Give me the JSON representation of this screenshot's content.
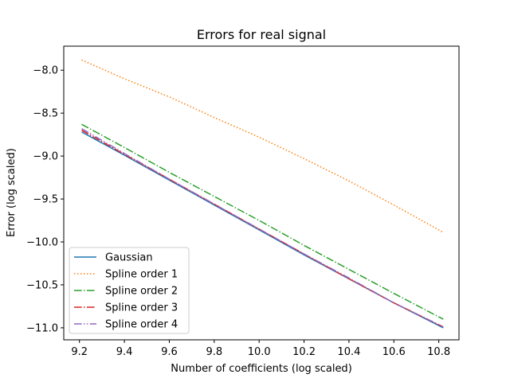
{
  "chart_data": {
    "type": "line",
    "title": "Errors for real signal",
    "xlabel": "Number of coefficients (log scaled)",
    "ylabel": "Error (log scaled)",
    "xlim": [
      9.13,
      10.89
    ],
    "ylim": [
      -11.14,
      -7.72
    ],
    "xticks": [
      9.2,
      9.4,
      9.6,
      9.8,
      10.0,
      10.2,
      10.4,
      10.6,
      10.8
    ],
    "xtick_labels": [
      "9.2",
      "9.4",
      "9.6",
      "9.8",
      "10.0",
      "10.2",
      "10.4",
      "10.6",
      "10.8"
    ],
    "yticks": [
      -8.0,
      -8.5,
      -9.0,
      -9.5,
      -10.0,
      -10.5,
      -11.0
    ],
    "ytick_labels": [
      "−8.0",
      "−8.5",
      "−9.0",
      "−9.5",
      "−10.0",
      "−10.5",
      "−11.0"
    ],
    "grid": false,
    "legend_position": "lower-left",
    "series": [
      {
        "name": "Gaussian",
        "color": "#1f77b4",
        "dash": "solid",
        "x": [
          9.21,
          9.4,
          9.6,
          9.8,
          10.0,
          10.2,
          10.4,
          10.6,
          10.82
        ],
        "y": [
          -8.72,
          -8.99,
          -9.28,
          -9.57,
          -9.86,
          -10.15,
          -10.43,
          -10.71,
          -11.0
        ]
      },
      {
        "name": "Spline order 1",
        "color": "#ff7f0e",
        "dash": "dotted",
        "x": [
          9.21,
          9.4,
          9.6,
          9.8,
          10.0,
          10.2,
          10.4,
          10.6,
          10.82
        ],
        "y": [
          -7.88,
          -8.1,
          -8.31,
          -8.55,
          -8.78,
          -9.03,
          -9.29,
          -9.57,
          -9.89
        ]
      },
      {
        "name": "Spline order 2",
        "color": "#2ca02c",
        "dash": "dashdot",
        "x": [
          9.21,
          9.4,
          9.6,
          9.8,
          10.0,
          10.2,
          10.4,
          10.6,
          10.82
        ],
        "y": [
          -8.63,
          -8.9,
          -9.19,
          -9.47,
          -9.75,
          -10.04,
          -10.32,
          -10.6,
          -10.9
        ]
      },
      {
        "name": "Spline order 3",
        "color": "#d62728",
        "dash": "dashdot",
        "x": [
          9.21,
          9.4,
          9.6,
          9.8,
          10.0,
          10.2,
          10.4,
          10.6,
          10.82
        ],
        "y": [
          -8.7,
          -8.98,
          -9.27,
          -9.56,
          -9.85,
          -10.14,
          -10.43,
          -10.71,
          -10.99
        ]
      },
      {
        "name": "Spline order 4",
        "color": "#9467bd",
        "dash": "dashdotdot",
        "x": [
          9.21,
          9.4,
          9.6,
          9.8,
          10.0,
          10.2,
          10.4,
          10.6,
          10.82
        ],
        "y": [
          -8.68,
          -8.97,
          -9.27,
          -9.56,
          -9.85,
          -10.14,
          -10.42,
          -10.71,
          -10.99
        ]
      }
    ]
  }
}
